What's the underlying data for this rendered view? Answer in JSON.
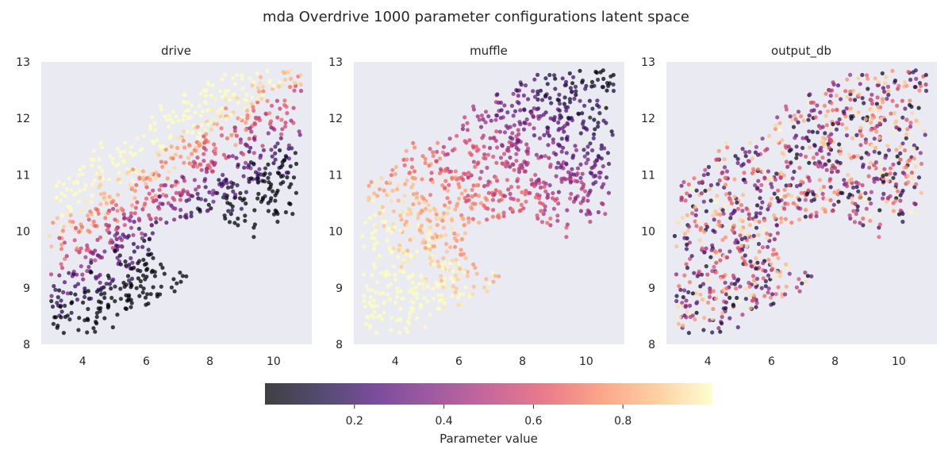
{
  "figure": {
    "title": "mda Overdrive 1000 parameter configurations latent space"
  },
  "chart_data": {
    "type": "scatter",
    "point_count": 1000,
    "xlim": [
      2.7,
      11.2
    ],
    "ylim": [
      8,
      13
    ],
    "x_ticks": [
      "4",
      "6",
      "8",
      "10"
    ],
    "y_ticks": [
      "8",
      "9",
      "10",
      "11",
      "12",
      "13"
    ],
    "grid": false,
    "colormap": "magma",
    "color_range": [
      0,
      1
    ],
    "background_color": "#eaeaf2",
    "panels": [
      {
        "title": "drive",
        "mapping": "drive",
        "seed": 11
      },
      {
        "title": "muffle",
        "mapping": "muffle",
        "seed": 23
      },
      {
        "title": "output_db",
        "mapping": "random",
        "seed": 37
      }
    ],
    "colorbar": {
      "label": "Parameter value",
      "ticks": [
        "0.2",
        "0.4",
        "0.6",
        "0.8"
      ],
      "range": [
        0,
        1
      ],
      "placement": "bottom-center"
    }
  }
}
